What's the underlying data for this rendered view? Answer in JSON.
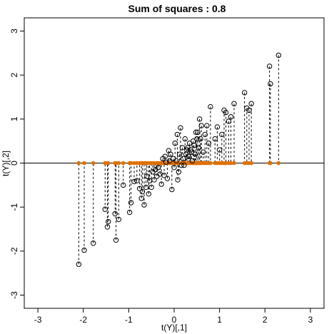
{
  "chart_data": {
    "type": "scatter",
    "title": "Sum of squares : 0.8",
    "xlabel": "t(Y)[,1]",
    "ylabel": "t(Y)[,2]",
    "xlim": [
      -3.3,
      3.3
    ],
    "ylim": [
      -3.3,
      3.3
    ],
    "xticks": [
      -3,
      -2,
      -1,
      0,
      1,
      2,
      3
    ],
    "yticks": [
      -3,
      -2,
      -1,
      0,
      1,
      2,
      3
    ],
    "tick_labels_x": [
      "-3",
      "-2",
      "-1",
      "0",
      "1",
      "2",
      "3"
    ],
    "tick_labels_y": [
      "-3",
      "-2",
      "-1",
      "0",
      "1",
      "2",
      "3"
    ],
    "reference_line_y": 0,
    "grid": false,
    "colors": {
      "points": "#000000",
      "projections": "#e07000",
      "segments": "#000000",
      "axis": "#000000"
    },
    "series": [
      {
        "points": [
          [
            -2.1,
            -2.3
          ],
          [
            -1.98,
            -1.98
          ],
          [
            -1.78,
            -1.82
          ],
          [
            -1.52,
            -1.05
          ],
          [
            -1.47,
            -1.45
          ],
          [
            -1.45,
            -1.33
          ],
          [
            -1.3,
            -1.15
          ],
          [
            -1.28,
            -1.75
          ],
          [
            -1.22,
            -1.28
          ],
          [
            -1.12,
            -0.5
          ],
          [
            -0.98,
            -1.12
          ],
          [
            -0.95,
            -0.9
          ],
          [
            -0.88,
            -0.42
          ],
          [
            -0.82,
            -0.4
          ],
          [
            -0.76,
            -0.58
          ],
          [
            -0.72,
            -0.8
          ],
          [
            -0.7,
            -0.65
          ],
          [
            -0.66,
            -0.95
          ],
          [
            -0.62,
            -0.55
          ],
          [
            -0.6,
            -0.3
          ],
          [
            -0.56,
            -0.7
          ],
          [
            -0.54,
            -0.4
          ],
          [
            -0.5,
            -0.55
          ],
          [
            -0.47,
            -0.2
          ],
          [
            -0.44,
            -0.38
          ],
          [
            -0.41,
            -0.15
          ],
          [
            -0.38,
            -0.3
          ],
          [
            -0.35,
            -0.1
          ],
          [
            -0.31,
            -0.25
          ],
          [
            -0.28,
            -0.48
          ],
          [
            -0.25,
            0.1
          ],
          [
            -0.22,
            -0.28
          ],
          [
            -0.2,
            0.15
          ],
          [
            -0.18,
            0.02
          ],
          [
            -0.15,
            -0.35
          ],
          [
            -0.12,
            0.28
          ],
          [
            -0.1,
            0.05
          ],
          [
            -0.08,
            0.2
          ],
          [
            -0.05,
            -0.6
          ],
          [
            -0.02,
            0.1
          ],
          [
            0,
            -0.1
          ],
          [
            0.02,
            0.45
          ],
          [
            0.05,
            0.05
          ],
          [
            0.07,
            0.65
          ],
          [
            0.08,
            -0.38
          ],
          [
            0.1,
            -0.2
          ],
          [
            0.12,
            0.2
          ],
          [
            0.14,
            0.8
          ],
          [
            0.16,
            -0.05
          ],
          [
            0.18,
            0.35
          ],
          [
            0.2,
            0.1
          ],
          [
            0.22,
            -0.05
          ],
          [
            0.24,
            0.55
          ],
          [
            0.26,
            0.2
          ],
          [
            0.28,
            0.3
          ],
          [
            0.3,
            0.35
          ],
          [
            0.32,
            0.15
          ],
          [
            0.34,
            0.45
          ],
          [
            0.36,
            0.3
          ],
          [
            0.38,
            0.25
          ],
          [
            0.4,
            0.05
          ],
          [
            0.42,
            0.5
          ],
          [
            0.44,
            0.4
          ],
          [
            0.46,
            0.2
          ],
          [
            0.48,
            0.7
          ],
          [
            0.5,
            0.55
          ],
          [
            0.52,
            0.7
          ],
          [
            0.54,
            0.35
          ],
          [
            0.56,
            1.0
          ],
          [
            0.58,
            0.55
          ],
          [
            0.6,
            0.85
          ],
          [
            0.64,
            0.25
          ],
          [
            0.68,
            0.65
          ],
          [
            0.72,
            0.85
          ],
          [
            0.76,
            0.45
          ],
          [
            0.8,
            1.28
          ],
          [
            0.9,
            0.55
          ],
          [
            0.95,
            0.82
          ],
          [
            1.0,
            0.3
          ],
          [
            1.05,
            0.65
          ],
          [
            1.1,
            1.2
          ],
          [
            1.14,
            1.15
          ],
          [
            1.2,
            0.95
          ],
          [
            1.25,
            1.05
          ],
          [
            1.32,
            1.35
          ],
          [
            1.55,
            1.6
          ],
          [
            1.6,
            1.25
          ],
          [
            1.65,
            1.2
          ],
          [
            1.7,
            1.35
          ],
          [
            2.1,
            2.2
          ],
          [
            2.12,
            1.8
          ],
          [
            2.3,
            2.45
          ]
        ]
      }
    ]
  }
}
